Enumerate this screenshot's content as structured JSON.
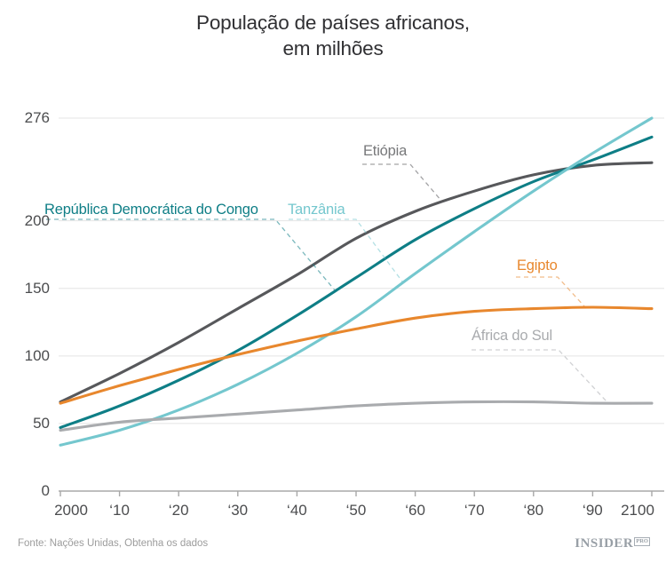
{
  "title": {
    "line1": "População de países africanos,",
    "line2": "em milhões"
  },
  "chart_data": {
    "type": "line",
    "title": "População de países africanos, em milhões",
    "x": [
      2000,
      2010,
      2020,
      2030,
      2040,
      2050,
      2060,
      2070,
      2080,
      2090,
      2100
    ],
    "x_tick_labels": [
      "2000",
      "‘10",
      "‘20",
      "‘30",
      "‘40",
      "‘50",
      "‘60",
      "‘70",
      "‘80",
      "‘90",
      "2100"
    ],
    "y_tick_values": [
      276,
      200,
      150,
      100,
      50,
      0
    ],
    "y_tick_labels": [
      "276",
      "200",
      "150",
      "100",
      "50",
      "0"
    ],
    "ylim": [
      0,
      276
    ],
    "xlabel": "",
    "ylabel": "",
    "grid": "horizontal",
    "legend_position": "inline-labels",
    "axis_color": "#a8a8a8",
    "grid_color": "#e4e4e4",
    "series": [
      {
        "name": "Etiópia",
        "color": "#57585b",
        "label_color": "#77787a",
        "values": [
          66,
          87,
          110,
          135,
          160,
          187,
          207,
          222,
          234,
          241,
          243
        ]
      },
      {
        "name": "República Democrática do Congo",
        "color": "#0e7e86",
        "label_color": "#0e7e86",
        "values": [
          47,
          63,
          82,
          104,
          130,
          158,
          186,
          209,
          229,
          245,
          262
        ]
      },
      {
        "name": "Tanzânia",
        "color": "#74c7ce",
        "label_color": "#74c7ce",
        "values": [
          34,
          45,
          60,
          79,
          102,
          129,
          161,
          192,
          222,
          250,
          276
        ]
      },
      {
        "name": "Egipto",
        "color": "#e8872d",
        "label_color": "#e8872d",
        "values": [
          65,
          78,
          90,
          101,
          111,
          120,
          128,
          133,
          135,
          136,
          135
        ]
      },
      {
        "name": "África do Sul",
        "color": "#a9abae",
        "label_color": "#a9abae",
        "values": [
          45,
          51,
          54,
          57,
          60,
          63,
          65,
          66,
          66,
          65,
          65
        ]
      }
    ]
  },
  "footer": {
    "source_prefix": "Fonte: Nações Unidas, ",
    "source_link_label": "Obtenha os dados",
    "brand": "INSIDER",
    "brand_suffix": "PRO"
  }
}
